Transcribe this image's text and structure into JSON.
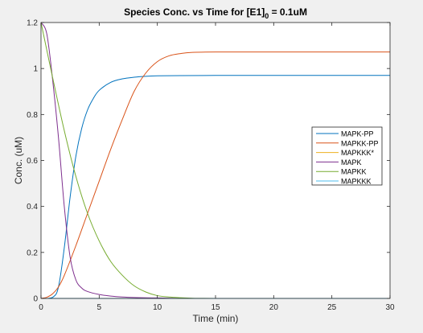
{
  "chart_data": {
    "type": "line",
    "title": {
      "main": "Species Conc. vs Time for [E1]",
      "subscript": "0",
      "suffix": " = 0.1uM"
    },
    "xlabel": "Time (min)",
    "ylabel": "Conc. (uM)",
    "xlim": [
      0,
      30
    ],
    "ylim": [
      0,
      1.2
    ],
    "xticks": [
      0,
      5,
      10,
      15,
      20,
      25,
      30
    ],
    "yticks": [
      0,
      0.2,
      0.4,
      0.6,
      0.8,
      1,
      1.2
    ],
    "grid": false,
    "legend_position": "right",
    "series": [
      {
        "name": "MAPK-PP",
        "color": "#0072bd",
        "x": [
          0,
          1,
          1.5,
          2,
          2.5,
          3,
          3.5,
          4,
          4.5,
          5,
          6,
          7,
          8,
          9,
          10,
          12,
          15,
          20,
          30
        ],
        "y": [
          0,
          0.005,
          0.05,
          0.22,
          0.44,
          0.62,
          0.74,
          0.82,
          0.87,
          0.905,
          0.94,
          0.955,
          0.962,
          0.966,
          0.968,
          0.969,
          0.97,
          0.97,
          0.97
        ]
      },
      {
        "name": "MAPKK-PP",
        "color": "#d95319",
        "x": [
          0,
          0.5,
          1,
          1.5,
          2,
          3,
          4,
          5,
          6,
          7,
          8,
          9,
          10,
          11,
          12,
          13,
          15,
          20,
          30
        ],
        "y": [
          0,
          0.005,
          0.02,
          0.05,
          0.1,
          0.23,
          0.37,
          0.51,
          0.65,
          0.78,
          0.9,
          0.98,
          1.03,
          1.055,
          1.065,
          1.07,
          1.072,
          1.072,
          1.072
        ]
      },
      {
        "name": "MAPKKK*",
        "color": "#edb120",
        "x": [
          0,
          30
        ],
        "y": [
          0,
          0
        ]
      },
      {
        "name": "MAPK",
        "color": "#7e2f8e",
        "x": [
          0,
          0.5,
          1,
          1.5,
          2,
          2.5,
          3,
          3.5,
          4,
          5,
          6,
          7,
          8,
          10,
          15,
          30
        ],
        "y": [
          1.2,
          1.15,
          0.95,
          0.7,
          0.4,
          0.18,
          0.08,
          0.045,
          0.03,
          0.017,
          0.01,
          0.006,
          0.004,
          0.002,
          0,
          0
        ]
      },
      {
        "name": "MAPKK",
        "color": "#77ac30",
        "x": [
          0,
          1,
          2,
          3,
          4,
          5,
          6,
          7,
          8,
          9,
          10,
          11,
          12,
          13,
          15,
          20,
          30
        ],
        "y": [
          1.2,
          0.96,
          0.73,
          0.53,
          0.37,
          0.25,
          0.16,
          0.1,
          0.055,
          0.028,
          0.012,
          0.006,
          0.003,
          0.001,
          0,
          0,
          0
        ]
      },
      {
        "name": "MAPKKK",
        "color": "#4dbeee",
        "x": [
          0,
          30
        ],
        "y": [
          0,
          0
        ]
      }
    ]
  }
}
